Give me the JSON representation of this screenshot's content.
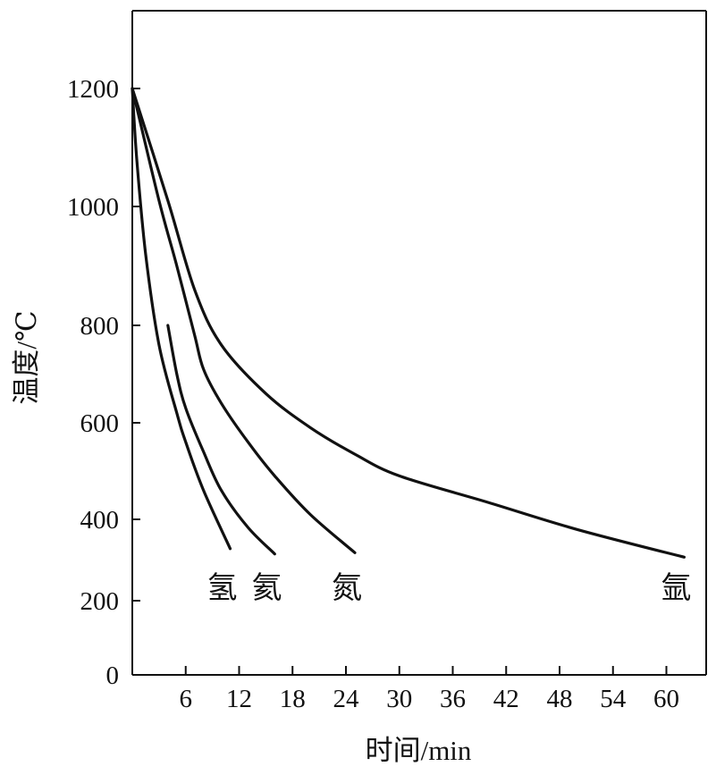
{
  "chart_data": {
    "type": "line",
    "xlabel": "时间/min",
    "ylabel": "温度/℃",
    "x_ticks": [
      "6",
      "12",
      "18",
      "24",
      "30",
      "36",
      "42",
      "48",
      "54",
      "60"
    ],
    "y_ticks": [
      "0",
      "200",
      "400",
      "600",
      "800",
      "1000",
      "1200"
    ],
    "xlim": [
      0,
      65
    ],
    "series": [
      {
        "name": "氢",
        "x": [
          0,
          0.5,
          1.5,
          3,
          5,
          6,
          8,
          11
        ],
        "y": [
          1200,
          1080,
          920,
          760,
          620,
          560,
          460,
          328
        ]
      },
      {
        "name": "氦",
        "x": [
          4,
          5,
          6,
          8,
          10,
          13,
          16
        ],
        "y": [
          800,
          700,
          630,
          540,
          460,
          380,
          315
        ]
      },
      {
        "name": "氮",
        "x": [
          0,
          3,
          5,
          7,
          8,
          10,
          13,
          16,
          20,
          25
        ],
        "y": [
          1200,
          1010,
          900,
          780,
          710,
          640,
          560,
          490,
          410,
          318
        ]
      },
      {
        "name": "氩",
        "x": [
          0,
          4,
          7,
          10,
          15,
          20,
          25,
          30,
          40,
          50,
          62
        ],
        "y": [
          1200,
          1010,
          860,
          760,
          660,
          590,
          535,
          490,
          435,
          375,
          307
        ]
      }
    ]
  }
}
